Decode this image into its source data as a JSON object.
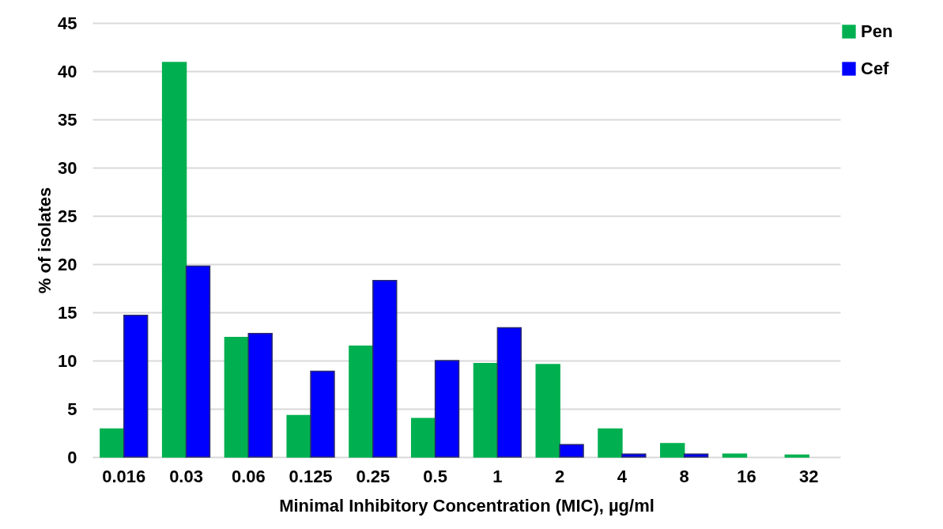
{
  "chart_data": {
    "type": "bar",
    "xlabel": "Minimal Inhibitory Concentration (MIC), µg/ml",
    "ylabel": "% of isolates",
    "categories": [
      "0.016",
      "0.03",
      "0.06",
      "0.125",
      "0.25",
      "0.5",
      "1",
      "2",
      "4",
      "8",
      "16",
      "32"
    ],
    "series": [
      {
        "name": "Pen",
        "color": "#00b050",
        "values": [
          2.9,
          40.9,
          12.4,
          4.3,
          11.5,
          4.0,
          9.7,
          9.6,
          2.9,
          1.4,
          0.3,
          0.2
        ]
      },
      {
        "name": "Cef",
        "color": "#0000ff",
        "values": [
          14.7,
          19.8,
          12.8,
          8.9,
          18.3,
          10.0,
          13.4,
          1.3,
          0.3,
          0.3,
          null,
          null
        ]
      }
    ],
    "ylim": [
      0,
      45
    ],
    "yticks": [
      0,
      5,
      10,
      15,
      20,
      25,
      30,
      35,
      40,
      45
    ],
    "grid": "y",
    "legend": "top right"
  }
}
